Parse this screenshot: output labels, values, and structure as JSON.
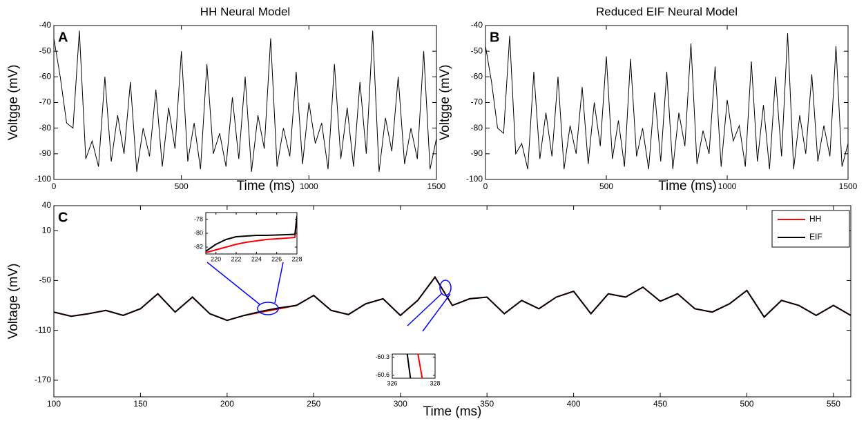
{
  "chart_data": [
    {
      "type": "line",
      "panel_label": "A",
      "title": "HH Neural Model",
      "x_label": "Time (ms)",
      "y_label": "Voltgge (mV)",
      "x": [
        0,
        25,
        50,
        75,
        100,
        125,
        150,
        175,
        200,
        225,
        250,
        275,
        300,
        325,
        350,
        375,
        400,
        425,
        450,
        475,
        500,
        525,
        550,
        575,
        600,
        625,
        650,
        675,
        700,
        725,
        750,
        775,
        800,
        825,
        850,
        875,
        900,
        925,
        950,
        975,
        1000,
        1025,
        1050,
        1075,
        1100,
        1125,
        1150,
        1175,
        1200,
        1225,
        1250,
        1275,
        1300,
        1325,
        1350,
        1375,
        1400,
        1425,
        1450,
        1475,
        1500
      ],
      "values": [
        -45,
        -60,
        -78,
        -80,
        -42,
        -92,
        -85,
        -95,
        -60,
        -93,
        -75,
        -90,
        -62,
        -97,
        -80,
        -91,
        -65,
        -95,
        -72,
        -88,
        -50,
        -93,
        -78,
        -96,
        -55,
        -90,
        -82,
        -95,
        -68,
        -92,
        -60,
        -97,
        -75,
        -88,
        -45,
        -95,
        -80,
        -91,
        -58,
        -94,
        -70,
        -86,
        -78,
        -96,
        -55,
        -92,
        -72,
        -95,
        -62,
        -90,
        -42,
        -97,
        -76,
        -89,
        -60,
        -94,
        -80,
        -92,
        -50,
        -96,
        -84
      ],
      "color": "#000000",
      "xlim": [
        0,
        1500
      ],
      "xticks": [
        0,
        500,
        1000,
        1500
      ],
      "ylim": [
        -100,
        -40
      ],
      "yticks": [
        -100,
        -90,
        -80,
        -70,
        -60,
        -50,
        -40
      ]
    },
    {
      "type": "line",
      "panel_label": "B",
      "title": "Reduced EIF Neural Model",
      "x_label": "Time  (ms)",
      "y_label": "Voltgge (mV)",
      "x": [
        0,
        25,
        50,
        75,
        100,
        125,
        150,
        175,
        200,
        225,
        250,
        275,
        300,
        325,
        350,
        375,
        400,
        425,
        450,
        475,
        500,
        525,
        550,
        575,
        600,
        625,
        650,
        675,
        700,
        725,
        750,
        775,
        800,
        825,
        850,
        875,
        900,
        925,
        950,
        975,
        1000,
        1025,
        1050,
        1075,
        1100,
        1125,
        1150,
        1175,
        1200,
        1225,
        1250,
        1275,
        1300,
        1325,
        1350,
        1375,
        1400,
        1425,
        1450,
        1475,
        1500
      ],
      "values": [
        -48,
        -62,
        -80,
        -82,
        -44,
        -90,
        -86,
        -96,
        -58,
        -92,
        -74,
        -91,
        -60,
        -96,
        -79,
        -90,
        -64,
        -94,
        -70,
        -87,
        -52,
        -92,
        -77,
        -95,
        -53,
        -91,
        -80,
        -96,
        -66,
        -93,
        -58,
        -96,
        -74,
        -87,
        -47,
        -94,
        -81,
        -90,
        -56,
        -95,
        -69,
        -85,
        -79,
        -95,
        -54,
        -93,
        -71,
        -96,
        -60,
        -91,
        -43,
        -96,
        -75,
        -90,
        -59,
        -93,
        -79,
        -91,
        -48,
        -95,
        -86
      ],
      "color": "#000000",
      "xlim": [
        0,
        1500
      ],
      "xticks": [
        0,
        500,
        1000,
        1500
      ],
      "ylim": [
        -100,
        -40
      ],
      "yticks": [
        -100,
        -90,
        -80,
        -70,
        -60,
        -50,
        -40
      ]
    },
    {
      "type": "line",
      "panel_label": "C",
      "x_label": "Time (ms)",
      "y_label": "Voltage (mV)",
      "x": [
        100,
        110,
        120,
        130,
        140,
        150,
        160,
        170,
        180,
        190,
        200,
        210,
        220,
        230,
        240,
        250,
        260,
        270,
        280,
        290,
        300,
        310,
        320,
        330,
        340,
        350,
        360,
        370,
        380,
        390,
        400,
        410,
        420,
        430,
        440,
        450,
        460,
        470,
        480,
        490,
        500,
        510,
        520,
        530,
        540,
        550,
        560
      ],
      "series": [
        {
          "name": "HH",
          "color": "#ff0000",
          "values": [
            -88,
            -93,
            -90,
            -86,
            -92,
            -84,
            -66,
            -88,
            -70,
            -90,
            -98,
            -92,
            -88,
            -84,
            -80,
            -68,
            -86,
            -91,
            -78,
            -72,
            -92,
            -74,
            -46,
            -80,
            -72,
            -70,
            -90,
            -74,
            -84,
            -70,
            -63,
            -90,
            -66,
            -70,
            -58,
            -75,
            -66,
            -84,
            -88,
            -78,
            -62,
            -94,
            -74,
            -80,
            -92,
            -80,
            -92
          ]
        },
        {
          "name": "EIF",
          "color": "#000000",
          "values": [
            -88,
            -93,
            -90,
            -86,
            -92,
            -84,
            -66,
            -88,
            -70,
            -90,
            -98,
            -92,
            -87,
            -83,
            -80,
            -68,
            -86,
            -91,
            -78,
            -72,
            -92,
            -74,
            -46,
            -80,
            -72,
            -70,
            -90,
            -74,
            -84,
            -70,
            -63,
            -90,
            -66,
            -70,
            -58,
            -75,
            -66,
            -84,
            -88,
            -78,
            -62,
            -94,
            -74,
            -80,
            -92,
            -80,
            -92
          ]
        }
      ],
      "xlim": [
        100,
        560
      ],
      "xticks": [
        100,
        150,
        200,
        250,
        300,
        350,
        400,
        450,
        500,
        550
      ],
      "ylim": [
        -190,
        40
      ],
      "yticks": [
        -170,
        -110,
        -50,
        10,
        40
      ],
      "legend": "upper right"
    },
    {
      "type": "line",
      "x": [
        219,
        220,
        221,
        222,
        223,
        224,
        225,
        226,
        227,
        227.8,
        228
      ],
      "series": [
        {
          "color": "#ff0000",
          "values": [
            -82.8,
            -82.4,
            -82.0,
            -81.6,
            -81.3,
            -81.1,
            -80.9,
            -80.8,
            -80.7,
            -80.6,
            -77.5
          ]
        },
        {
          "color": "#000000",
          "values": [
            -82.6,
            -81.6,
            -80.9,
            -80.5,
            -80.4,
            -80.3,
            -80.3,
            -80.25,
            -80.2,
            -80.15,
            -77.5
          ]
        }
      ],
      "xlim": [
        219,
        228
      ],
      "xticks": [
        220,
        222,
        224,
        226,
        228
      ],
      "ylim": [
        -83,
        -77
      ],
      "yticks": [
        -82,
        -80,
        -78
      ]
    },
    {
      "type": "line",
      "series": [
        {
          "color": "#000000",
          "x": [
            326.7,
            326.85
          ],
          "values": [
            -60.25,
            -60.65
          ]
        },
        {
          "color": "#ff0000",
          "x": [
            327.2,
            327.4
          ],
          "values": [
            -60.25,
            -60.65
          ]
        }
      ],
      "xlim": [
        326,
        328
      ],
      "xticks": [
        326,
        328
      ],
      "ylim": [
        -60.65,
        -60.25
      ],
      "yticks": [
        -60.6,
        -60.3
      ]
    }
  ]
}
